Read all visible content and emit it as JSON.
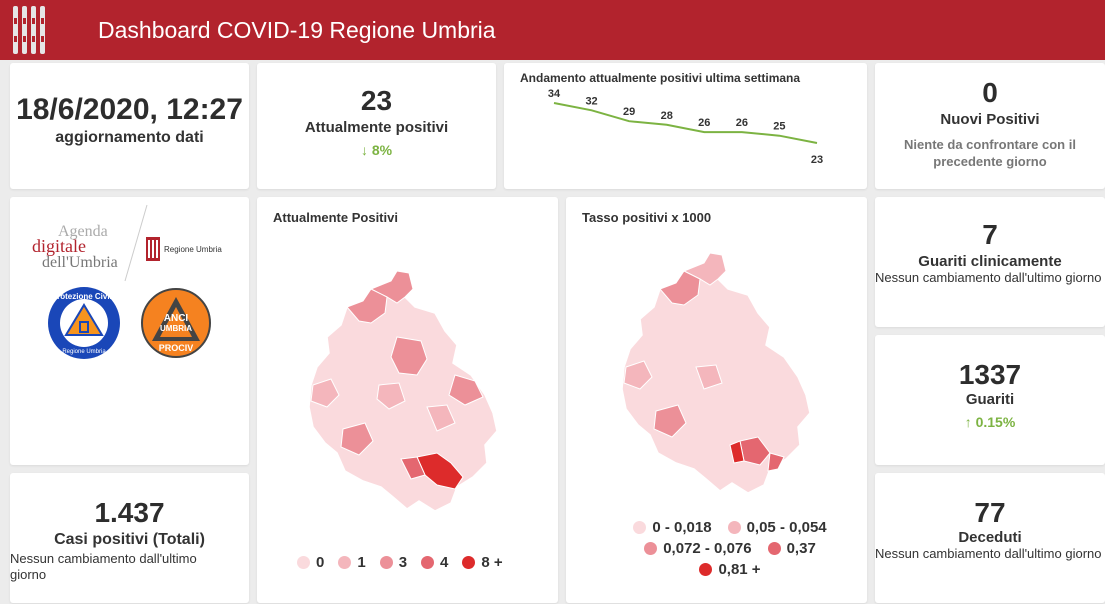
{
  "header": {
    "title": "Dashboard COVID-19 Regione Umbria"
  },
  "update": {
    "datetime": "18/6/2020, 12:27",
    "label": "aggiornamento dati"
  },
  "attualmente": {
    "value": "23",
    "label": "Attualmente positivi",
    "delta": "8%",
    "delta_direction": "down"
  },
  "chart_data": {
    "type": "line",
    "title": "Andamento attualmente positivi ultima settimana",
    "values": [
      34,
      32,
      29,
      28,
      26,
      26,
      25,
      23
    ],
    "color": "#7cb342"
  },
  "nuovi": {
    "value": "0",
    "label": "Nuovi Positivi",
    "note": "Niente da confrontare con il precedente giorno"
  },
  "logos": {
    "agenda_line1": "Agenda",
    "agenda_line2": "digitale",
    "agenda_line3": "dell'Umbria",
    "regione": "Regione Umbria",
    "protezione": "Protezione Civile",
    "protezione_sub": "Regione Umbria",
    "anci_top": "ANCI",
    "anci_mid": "UMBRIA",
    "anci_bottom": "PROCIV"
  },
  "map1": {
    "title": "Attualmente Positivi",
    "legend": [
      {
        "label": "0",
        "color": "#fadadd"
      },
      {
        "label": "1",
        "color": "#f4b6bc"
      },
      {
        "label": "3",
        "color": "#ec9098"
      },
      {
        "label": "4",
        "color": "#e46770"
      },
      {
        "label": "8 +",
        "color": "#dd2b2b"
      }
    ]
  },
  "map2": {
    "title": "Tasso positivi x 1000",
    "legend": [
      {
        "label": "0 - 0,018",
        "color": "#fadadd"
      },
      {
        "label": "0,05 - 0,054",
        "color": "#f4b6bc"
      },
      {
        "label": "0,072 - 0,076",
        "color": "#ec9098"
      },
      {
        "label": "0,37",
        "color": "#e46770"
      },
      {
        "label": "0,81 +",
        "color": "#dd2b2b"
      }
    ]
  },
  "casi": {
    "value": "1.437",
    "label": "Casi positivi (Totali)",
    "note": "Nessun cambiamento dall'ultimo giorno"
  },
  "guariti_clin": {
    "value": "7",
    "label": "Guariti clinicamente",
    "note": "Nessun cambiamento dall'ultimo giorno"
  },
  "guariti": {
    "value": "1337",
    "label": "Guariti",
    "delta": "0.15%",
    "delta_direction": "up"
  },
  "deceduti": {
    "value": "77",
    "label": "Deceduti",
    "note": "Nessun cambiamento dall'ultimo giorno"
  }
}
